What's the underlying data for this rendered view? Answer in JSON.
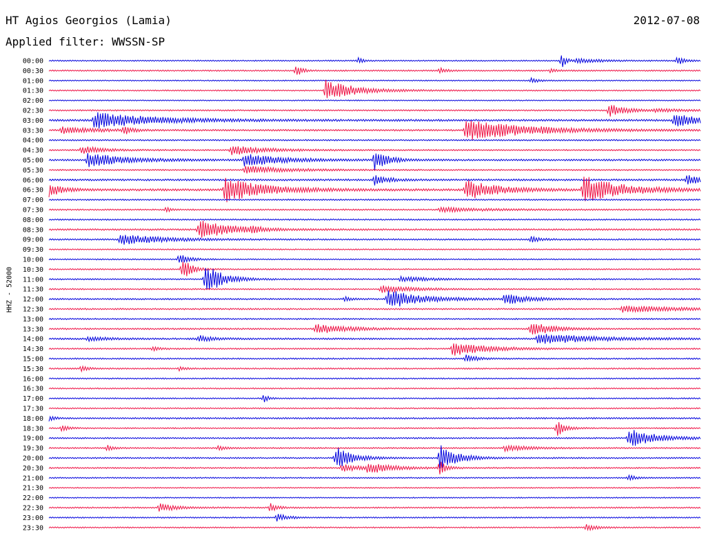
{
  "header": {
    "station": "HT Agios Georgios (Lamia)",
    "filter": "Applied filter: WWSSN-SP",
    "date": "2012-07-08"
  },
  "chart_data": {
    "type": "line",
    "title": "HT Agios Georgios (Lamia)",
    "subtitle": "Applied filter: WWSSN-SP",
    "date": "2012-07-08",
    "ylabel": "HHZ - 52000",
    "trace_minutes": 30,
    "colors": {
      "even": "#0000dd",
      "odd": "#ee1144"
    },
    "grid": false,
    "rows": [
      {
        "label": "00:00",
        "noise": 0.9,
        "events": [
          {
            "t": 0.475,
            "amp": 4,
            "dur": 0.008
          },
          {
            "t": 0.787,
            "amp": 12,
            "dur": 0.006
          },
          {
            "t": 0.81,
            "amp": 3,
            "dur": 0.04
          },
          {
            "t": 0.965,
            "amp": 6,
            "dur": 0.01
          }
        ]
      },
      {
        "label": "00:30",
        "noise": 1.0,
        "events": [
          {
            "t": 0.38,
            "amp": 10,
            "dur": 0.008
          },
          {
            "t": 0.6,
            "amp": 4,
            "dur": 0.01
          },
          {
            "t": 0.77,
            "amp": 3,
            "dur": 0.01
          }
        ]
      },
      {
        "label": "01:00",
        "noise": 0.8,
        "events": [
          {
            "t": 0.74,
            "amp": 4,
            "dur": 0.01
          }
        ]
      },
      {
        "label": "01:30",
        "noise": 0.9,
        "events": [
          {
            "t": 0.425,
            "amp": 15,
            "dur": 0.045
          }
        ]
      },
      {
        "label": "02:00",
        "noise": 0.8,
        "events": []
      },
      {
        "label": "02:30",
        "noise": 1.0,
        "events": [
          {
            "t": 0.86,
            "amp": 9,
            "dur": 0.025
          },
          {
            "t": 0.93,
            "amp": 2,
            "dur": 0.06
          }
        ]
      },
      {
        "label": "03:00",
        "noise": 1.4,
        "events": [
          {
            "t": 0.07,
            "amp": 12,
            "dur": 0.09
          },
          {
            "t": 0.96,
            "amp": 9,
            "dur": 0.045
          }
        ]
      },
      {
        "label": "03:30",
        "noise": 1.2,
        "events": [
          {
            "t": 0.02,
            "amp": 5,
            "dur": 0.05
          },
          {
            "t": 0.115,
            "amp": 7,
            "dur": 0.01
          },
          {
            "t": 0.64,
            "amp": 16,
            "dur": 0.09
          }
        ]
      },
      {
        "label": "04:00",
        "noise": 1.0,
        "events": []
      },
      {
        "label": "04:30",
        "noise": 1.0,
        "events": [
          {
            "t": 0.05,
            "amp": 6,
            "dur": 0.03
          },
          {
            "t": 0.28,
            "amp": 7,
            "dur": 0.05
          }
        ]
      },
      {
        "label": "05:00",
        "noise": 1.2,
        "events": [
          {
            "t": 0.06,
            "amp": 10,
            "dur": 0.06
          },
          {
            "t": 0.3,
            "amp": 9,
            "dur": 0.06
          },
          {
            "t": 0.5,
            "amp": 14,
            "dur": 0.02
          }
        ]
      },
      {
        "label": "05:30",
        "noise": 1.0,
        "events": [
          {
            "t": 0.3,
            "amp": 6,
            "dur": 0.06
          }
        ]
      },
      {
        "label": "06:00",
        "noise": 1.3,
        "events": [
          {
            "t": 0.5,
            "amp": 7,
            "dur": 0.02
          },
          {
            "t": 0.98,
            "amp": 8,
            "dur": 0.02
          }
        ]
      },
      {
        "label": "06:30",
        "noise": 1.5,
        "events": [
          {
            "t": 0.0,
            "amp": 10,
            "dur": 0.02
          },
          {
            "t": 0.27,
            "amp": 18,
            "dur": 0.06
          },
          {
            "t": 0.64,
            "amp": 16,
            "dur": 0.045
          },
          {
            "t": 0.82,
            "amp": 20,
            "dur": 0.06
          }
        ]
      },
      {
        "label": "07:00",
        "noise": 1.0,
        "events": []
      },
      {
        "label": "07:30",
        "noise": 1.0,
        "events": [
          {
            "t": 0.18,
            "amp": 5,
            "dur": 0.006
          },
          {
            "t": 0.6,
            "amp": 3,
            "dur": 0.08
          }
        ]
      },
      {
        "label": "08:00",
        "noise": 1.0,
        "events": []
      },
      {
        "label": "08:30",
        "noise": 1.2,
        "events": [
          {
            "t": 0.23,
            "amp": 14,
            "dur": 0.05
          },
          {
            "t": 0.31,
            "amp": 5,
            "dur": 0.01
          }
        ]
      },
      {
        "label": "09:00",
        "noise": 1.1,
        "events": [
          {
            "t": 0.11,
            "amp": 8,
            "dur": 0.06
          },
          {
            "t": 0.74,
            "amp": 4,
            "dur": 0.015
          }
        ]
      },
      {
        "label": "09:30",
        "noise": 0.9,
        "events": []
      },
      {
        "label": "10:00",
        "noise": 0.9,
        "events": [
          {
            "t": 0.2,
            "amp": 8,
            "dur": 0.015
          }
        ]
      },
      {
        "label": "10:30",
        "noise": 1.0,
        "events": [
          {
            "t": 0.205,
            "amp": 18,
            "dur": 0.012
          }
        ]
      },
      {
        "label": "11:00",
        "noise": 1.0,
        "events": [
          {
            "t": 0.24,
            "amp": 24,
            "dur": 0.025
          },
          {
            "t": 0.54,
            "amp": 4,
            "dur": 0.04
          }
        ]
      },
      {
        "label": "11:30",
        "noise": 1.0,
        "events": [
          {
            "t": 0.51,
            "amp": 5,
            "dur": 0.05
          }
        ]
      },
      {
        "label": "12:00",
        "noise": 1.1,
        "events": [
          {
            "t": 0.455,
            "amp": 4,
            "dur": 0.01
          },
          {
            "t": 0.52,
            "amp": 14,
            "dur": 0.05
          },
          {
            "t": 0.7,
            "amp": 9,
            "dur": 0.03
          }
        ]
      },
      {
        "label": "12:30",
        "noise": 1.1,
        "events": [
          {
            "t": 0.88,
            "amp": 5,
            "dur": 0.08
          }
        ]
      },
      {
        "label": "13:00",
        "noise": 1.0,
        "events": []
      },
      {
        "label": "13:30",
        "noise": 1.1,
        "events": [
          {
            "t": 0.41,
            "amp": 7,
            "dur": 0.05
          },
          {
            "t": 0.74,
            "amp": 11,
            "dur": 0.03
          }
        ]
      },
      {
        "label": "14:00",
        "noise": 1.2,
        "events": [
          {
            "t": 0.06,
            "amp": 3,
            "dur": 0.03
          },
          {
            "t": 0.23,
            "amp": 5,
            "dur": 0.02
          },
          {
            "t": 0.75,
            "amp": 8,
            "dur": 0.08
          }
        ]
      },
      {
        "label": "14:30",
        "noise": 1.0,
        "events": [
          {
            "t": 0.16,
            "amp": 3,
            "dur": 0.01
          },
          {
            "t": 0.62,
            "amp": 10,
            "dur": 0.05
          }
        ]
      },
      {
        "label": "15:00",
        "noise": 1.0,
        "events": [
          {
            "t": 0.64,
            "amp": 6,
            "dur": 0.015
          }
        ]
      },
      {
        "label": "15:30",
        "noise": 1.0,
        "events": [
          {
            "t": 0.05,
            "amp": 4,
            "dur": 0.01
          },
          {
            "t": 0.2,
            "amp": 3,
            "dur": 0.01
          }
        ]
      },
      {
        "label": "16:00",
        "noise": 0.9,
        "events": []
      },
      {
        "label": "16:30",
        "noise": 0.9,
        "events": []
      },
      {
        "label": "17:00",
        "noise": 0.9,
        "events": [
          {
            "t": 0.33,
            "amp": 7,
            "dur": 0.006
          }
        ]
      },
      {
        "label": "17:30",
        "noise": 0.9,
        "events": []
      },
      {
        "label": "18:00",
        "noise": 1.1,
        "events": [
          {
            "t": 0.0,
            "amp": 4,
            "dur": 0.008
          }
        ]
      },
      {
        "label": "18:30",
        "noise": 0.9,
        "events": [
          {
            "t": 0.02,
            "amp": 5,
            "dur": 0.01
          },
          {
            "t": 0.78,
            "amp": 13,
            "dur": 0.012
          }
        ]
      },
      {
        "label": "19:00",
        "noise": 1.0,
        "events": [
          {
            "t": 0.89,
            "amp": 14,
            "dur": 0.04
          }
        ]
      },
      {
        "label": "19:30",
        "noise": 1.0,
        "events": [
          {
            "t": 0.09,
            "amp": 4,
            "dur": 0.01
          },
          {
            "t": 0.26,
            "amp": 4,
            "dur": 0.01
          },
          {
            "t": 0.7,
            "amp": 4,
            "dur": 0.04
          }
        ]
      },
      {
        "label": "20:00",
        "noise": 1.0,
        "events": [
          {
            "t": 0.44,
            "amp": 17,
            "dur": 0.025
          },
          {
            "t": 0.6,
            "amp": 20,
            "dur": 0.025
          }
        ]
      },
      {
        "label": "20:30",
        "noise": 1.0,
        "events": [
          {
            "t": 0.45,
            "amp": 5,
            "dur": 0.03
          },
          {
            "t": 0.49,
            "amp": 8,
            "dur": 0.035
          },
          {
            "t": 0.6,
            "amp": 10,
            "dur": 0.01
          }
        ]
      },
      {
        "label": "21:00",
        "noise": 0.9,
        "events": [
          {
            "t": 0.89,
            "amp": 4,
            "dur": 0.01
          }
        ]
      },
      {
        "label": "21:30",
        "noise": 0.8,
        "events": []
      },
      {
        "label": "22:00",
        "noise": 0.8,
        "events": []
      },
      {
        "label": "22:30",
        "noise": 1.0,
        "events": [
          {
            "t": 0.17,
            "amp": 6,
            "dur": 0.025
          },
          {
            "t": 0.34,
            "amp": 7,
            "dur": 0.01
          }
        ]
      },
      {
        "label": "23:00",
        "noise": 0.9,
        "events": [
          {
            "t": 0.35,
            "amp": 6,
            "dur": 0.015
          }
        ]
      },
      {
        "label": "23:30",
        "noise": 0.9,
        "events": [
          {
            "t": 0.825,
            "amp": 5,
            "dur": 0.015
          }
        ]
      }
    ]
  }
}
